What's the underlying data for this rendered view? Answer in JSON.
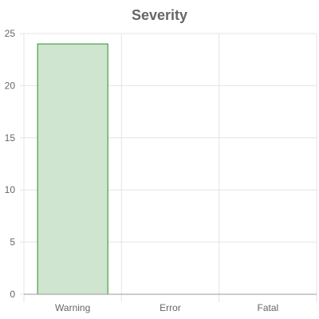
{
  "chart_data": {
    "type": "bar",
    "title": "Severity",
    "categories": [
      "Warning",
      "Error",
      "Fatal"
    ],
    "series": [
      {
        "values": [
          24,
          0,
          0
        ]
      }
    ],
    "ylim": [
      0,
      25
    ],
    "yticks": [
      0,
      5,
      10,
      15,
      20,
      25
    ],
    "grid": true,
    "colors": {
      "bar_fill": "#cfe5cf",
      "bar_stroke": "#2e8b2e",
      "grid": "#e4e4e4",
      "axis": "#999999",
      "text": "#666666"
    }
  }
}
